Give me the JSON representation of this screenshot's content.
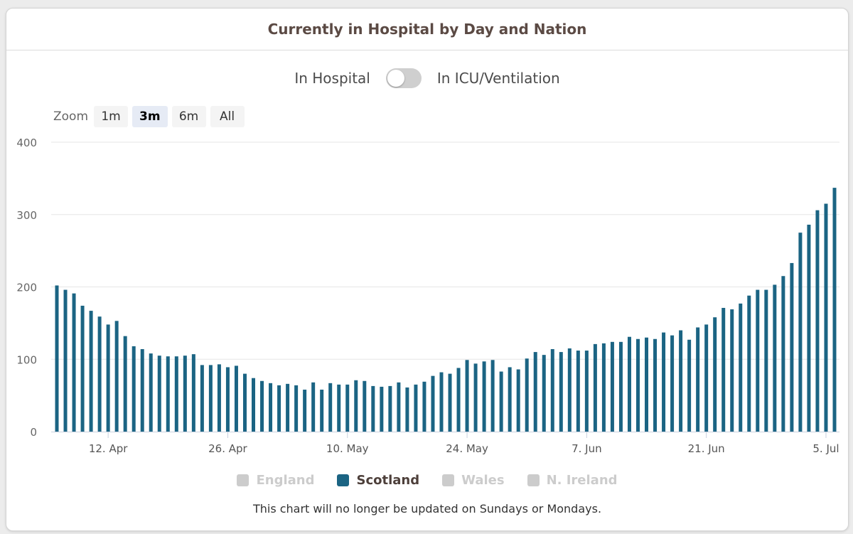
{
  "card": {
    "title": "Currently in Hospital by Day and Nation"
  },
  "toggle": {
    "left_label": "In Hospital",
    "right_label": "In ICU/Ventilation"
  },
  "zoom": {
    "label": "Zoom",
    "buttons": [
      "1m",
      "3m",
      "6m",
      "All"
    ],
    "active": "3m"
  },
  "legend": [
    {
      "label": "England",
      "visible": false,
      "color": "#cccccc"
    },
    {
      "label": "Scotland",
      "visible": true,
      "color": "#1b6483"
    },
    {
      "label": "Wales",
      "visible": false,
      "color": "#cccccc"
    },
    {
      "label": "N. Ireland",
      "visible": false,
      "color": "#cccccc"
    }
  ],
  "footnote": "This chart will no longer be updated on Sundays or Mondays.",
  "chart_data": {
    "type": "bar",
    "title": "Currently in Hospital by Day and Nation",
    "xlabel": "",
    "ylabel": "",
    "ylim": [
      0,
      400
    ],
    "yticks": [
      0,
      100,
      200,
      300,
      400
    ],
    "grid": true,
    "legend_position": "bottom",
    "x_start": "2021-04-06",
    "x_tick_labels": [
      {
        "label": "12. Apr",
        "date": "2021-04-12"
      },
      {
        "label": "26. Apr",
        "date": "2021-04-26"
      },
      {
        "label": "10. May",
        "date": "2021-05-10"
      },
      {
        "label": "24. May",
        "date": "2021-05-24"
      },
      {
        "label": "7. Jun",
        "date": "2021-06-07"
      },
      {
        "label": "21. Jun",
        "date": "2021-06-21"
      },
      {
        "label": "5. Jul",
        "date": "2021-07-05"
      }
    ],
    "bar_color": "#1b6483",
    "series": [
      {
        "name": "Scotland",
        "values": [
          202,
          196,
          191,
          174,
          167,
          159,
          148,
          153,
          132,
          118,
          114,
          108,
          105,
          104,
          104,
          105,
          107,
          92,
          92,
          93,
          89,
          91,
          80,
          74,
          70,
          67,
          64,
          66,
          64,
          58,
          68,
          58,
          67,
          65,
          65,
          71,
          70,
          63,
          62,
          63,
          68,
          61,
          65,
          69,
          77,
          82,
          80,
          88,
          99,
          94,
          97,
          99,
          83,
          89,
          86,
          101,
          110,
          106,
          114,
          110,
          115,
          112,
          112,
          121,
          122,
          124,
          124,
          131,
          128,
          130,
          128,
          137,
          133,
          140,
          127,
          144,
          148,
          158,
          171,
          169,
          177,
          188,
          196,
          196,
          203,
          215,
          233,
          275,
          286,
          306,
          315,
          337
        ]
      }
    ]
  }
}
